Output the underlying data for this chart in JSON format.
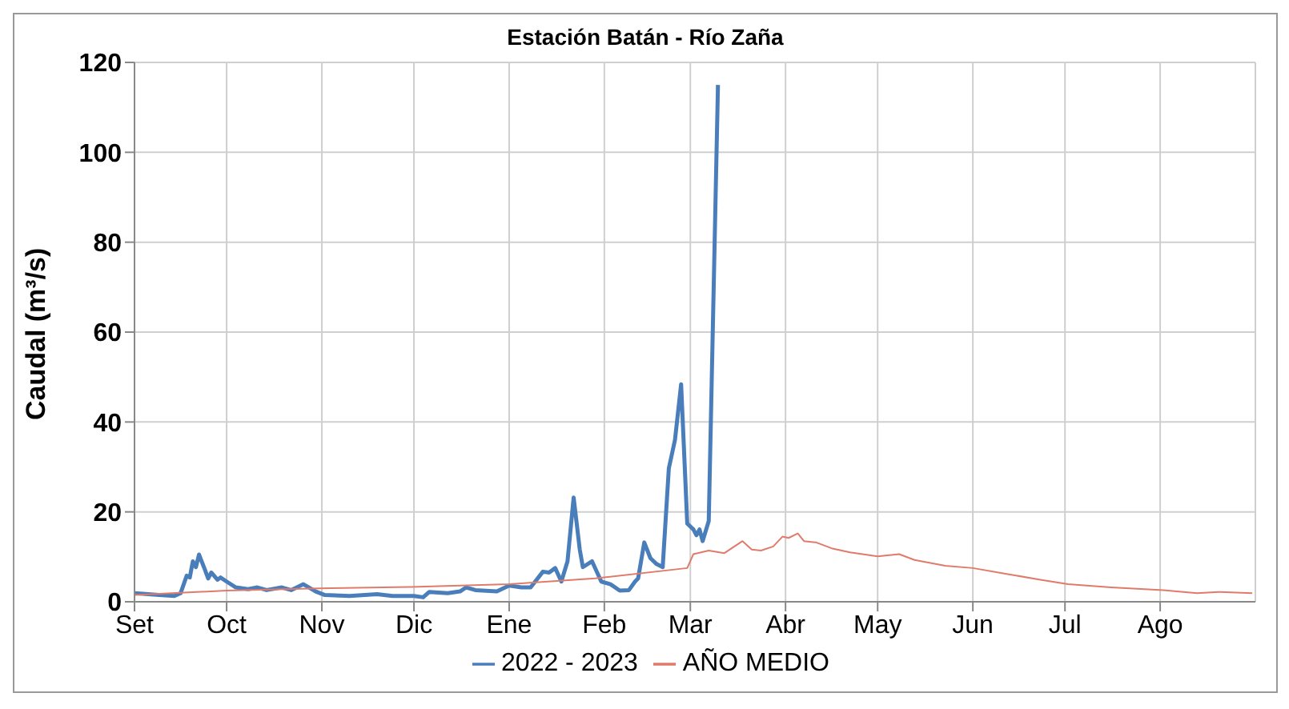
{
  "chart_data": {
    "type": "line",
    "title": "Estación Batán - Río Zaña",
    "ylabel": "Caudal (m³/s)",
    "xlim": [
      "2022-09-01",
      "2023-09-01"
    ],
    "xticks": [
      {
        "value": "2022-09-01",
        "label": "Set"
      },
      {
        "value": "2022-10-01",
        "label": "Oct"
      },
      {
        "value": "2022-11-01",
        "label": "Nov"
      },
      {
        "value": "2022-12-01",
        "label": "Dic"
      },
      {
        "value": "2023-01-01",
        "label": "Ene"
      },
      {
        "value": "2023-02-01",
        "label": "Feb"
      },
      {
        "value": "2023-03-01",
        "label": "Mar"
      },
      {
        "value": "2023-04-01",
        "label": "Abr"
      },
      {
        "value": "2023-05-01",
        "label": "May"
      },
      {
        "value": "2023-06-01",
        "label": "Jun"
      },
      {
        "value": "2023-07-01",
        "label": "Jul"
      },
      {
        "value": "2023-08-01",
        "label": "Ago"
      }
    ],
    "ylim": [
      0,
      120
    ],
    "yticks": [
      0,
      20,
      40,
      60,
      80,
      100,
      120
    ],
    "grid": true,
    "legend": "bottom",
    "marker": "none",
    "line_style": "solid",
    "series": [
      {
        "name": "AÑO MEDIO",
        "color": "#e07b6b",
        "x": [
          "2022-09-01",
          "2022-10-01",
          "2022-10-31",
          "2022-11-30",
          "2023-01-01",
          "2023-01-29",
          "2023-02-28",
          "2023-03-02",
          "2023-03-07",
          "2023-03-12",
          "2023-03-18",
          "2023-03-21",
          "2023-03-24",
          "2023-03-28",
          "2023-03-31",
          "2023-04-02",
          "2023-04-05",
          "2023-04-07",
          "2023-04-11",
          "2023-04-16",
          "2023-04-22",
          "2023-05-01",
          "2023-05-08",
          "2023-05-13",
          "2023-05-23",
          "2023-06-01",
          "2023-06-12",
          "2023-06-23",
          "2023-07-02",
          "2023-07-16",
          "2023-08-02",
          "2023-08-13",
          "2023-08-20",
          "2023-08-31"
        ],
        "values": [
          1.5,
          2.5,
          3,
          3.3,
          3.9,
          5.2,
          7.5,
          10.6,
          11.4,
          10.8,
          13.5,
          11.6,
          11.4,
          12.3,
          14.5,
          14.2,
          15.2,
          13.5,
          13.2,
          11.9,
          11,
          10.1,
          10.6,
          9.3,
          8,
          7.5,
          6.2,
          4.9,
          3.9,
          3.2,
          2.6,
          1.9,
          2.2,
          1.9
        ]
      },
      {
        "name": "2022 - 2023",
        "color": "#4a7ebb",
        "x": [
          "2022-09-01",
          "2022-09-09",
          "2022-09-14",
          "2022-09-16",
          "2022-09-18",
          "2022-09-19",
          "2022-09-20",
          "2022-09-21",
          "2022-09-22",
          "2022-09-24",
          "2022-09-25",
          "2022-09-26",
          "2022-09-28",
          "2022-09-29",
          "2022-10-01",
          "2022-10-04",
          "2022-10-08",
          "2022-10-11",
          "2022-10-14",
          "2022-10-19",
          "2022-10-22",
          "2022-10-26",
          "2022-10-30",
          "2022-11-02",
          "2022-11-10",
          "2022-11-19",
          "2022-11-24",
          "2022-12-01",
          "2022-12-04",
          "2022-12-06",
          "2022-12-12",
          "2022-12-16",
          "2022-12-18",
          "2022-12-21",
          "2022-12-28",
          "2023-01-01",
          "2023-01-05",
          "2023-01-08",
          "2023-01-12",
          "2023-01-14",
          "2023-01-16",
          "2023-01-18",
          "2023-01-20",
          "2023-01-22",
          "2023-01-24",
          "2023-01-25",
          "2023-01-28",
          "2023-01-31",
          "2023-02-03",
          "2023-02-06",
          "2023-02-09",
          "2023-02-11",
          "2023-02-12",
          "2023-02-14",
          "2023-02-16",
          "2023-02-18",
          "2023-02-20",
          "2023-02-22",
          "2023-02-24",
          "2023-02-26",
          "2023-02-28",
          "2023-03-02",
          "2023-03-03",
          "2023-03-04",
          "2023-03-05",
          "2023-03-07",
          "2023-03-10"
        ],
        "values": [
          1.9,
          1.5,
          1.3,
          1.9,
          5.8,
          5.4,
          9,
          7.7,
          10.5,
          7,
          5.2,
          6.5,
          4.9,
          5.4,
          4.5,
          3.2,
          2.8,
          3.2,
          2.6,
          3.2,
          2.6,
          3.9,
          2.3,
          1.5,
          1.3,
          1.7,
          1.3,
          1.3,
          1,
          2.2,
          1.9,
          2.3,
          3.2,
          2.6,
          2.3,
          3.6,
          3.2,
          3.2,
          6.7,
          6.5,
          7.5,
          4.5,
          9,
          23.2,
          11.6,
          7.7,
          9,
          4.5,
          3.9,
          2.5,
          2.6,
          4.5,
          5.2,
          13.2,
          9.7,
          8.4,
          7.7,
          29.7,
          36,
          48.4,
          17.4,
          16.1,
          14.8,
          16.1,
          13.5,
          18,
          115
        ]
      }
    ]
  }
}
